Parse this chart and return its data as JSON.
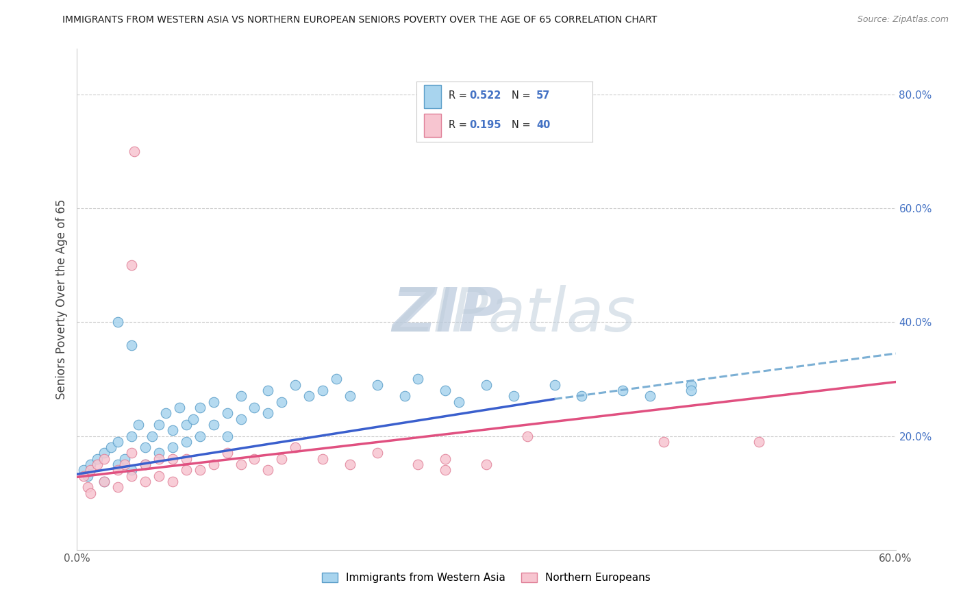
{
  "title": "IMMIGRANTS FROM WESTERN ASIA VS NORTHERN EUROPEAN SENIORS POVERTY OVER THE AGE OF 65 CORRELATION CHART",
  "source": "Source: ZipAtlas.com",
  "ylabel": "Seniors Poverty Over the Age of 65",
  "x_label_blue": "Immigrants from Western Asia",
  "x_label_pink": "Northern Europeans",
  "blue_R": "0.522",
  "blue_N": "57",
  "pink_R": "0.195",
  "pink_N": "40",
  "xlim": [
    0.0,
    0.6
  ],
  "ylim": [
    0.0,
    0.88
  ],
  "right_yticks": [
    0.2,
    0.4,
    0.6,
    0.8
  ],
  "right_yticklabels": [
    "20.0%",
    "40.0%",
    "60.0%",
    "80.0%"
  ],
  "blue_fill": "#A8D4EE",
  "blue_edge": "#5B9EC9",
  "pink_fill": "#F7C5D0",
  "pink_edge": "#E08098",
  "trend_blue_color": "#3A5FCD",
  "trend_pink_color": "#E05080",
  "trend_dashed_color": "#7BAFD4",
  "grid_color": "#CCCCCC",
  "title_color": "#1a1a1a",
  "source_color": "#888888",
  "axis_label_color": "#444444",
  "right_tick_color": "#4472C4",
  "legend_text_color": "#222222",
  "legend_value_color": "#4472C4",
  "watermark_color": "#C8D8EC",
  "blue_x": [
    0.005,
    0.008,
    0.01,
    0.015,
    0.02,
    0.02,
    0.025,
    0.03,
    0.03,
    0.035,
    0.04,
    0.04,
    0.045,
    0.05,
    0.05,
    0.055,
    0.06,
    0.06,
    0.065,
    0.07,
    0.07,
    0.075,
    0.08,
    0.08,
    0.085,
    0.09,
    0.09,
    0.1,
    0.1,
    0.11,
    0.11,
    0.12,
    0.12,
    0.13,
    0.14,
    0.14,
    0.15,
    0.16,
    0.17,
    0.18,
    0.19,
    0.2,
    0.22,
    0.24,
    0.25,
    0.27,
    0.28,
    0.3,
    0.32,
    0.35,
    0.37,
    0.4,
    0.42,
    0.45,
    0.45,
    0.03,
    0.04
  ],
  "blue_y": [
    0.14,
    0.13,
    0.15,
    0.16,
    0.17,
    0.12,
    0.18,
    0.15,
    0.19,
    0.16,
    0.2,
    0.14,
    0.22,
    0.18,
    0.15,
    0.2,
    0.22,
    0.17,
    0.24,
    0.21,
    0.18,
    0.25,
    0.22,
    0.19,
    0.23,
    0.25,
    0.2,
    0.26,
    0.22,
    0.24,
    0.2,
    0.27,
    0.23,
    0.25,
    0.28,
    0.24,
    0.26,
    0.29,
    0.27,
    0.28,
    0.3,
    0.27,
    0.29,
    0.27,
    0.3,
    0.28,
    0.26,
    0.29,
    0.27,
    0.29,
    0.27,
    0.28,
    0.27,
    0.29,
    0.28,
    0.4,
    0.36
  ],
  "pink_x": [
    0.005,
    0.008,
    0.01,
    0.01,
    0.015,
    0.02,
    0.02,
    0.03,
    0.03,
    0.035,
    0.04,
    0.04,
    0.042,
    0.05,
    0.05,
    0.06,
    0.06,
    0.07,
    0.07,
    0.08,
    0.08,
    0.09,
    0.1,
    0.11,
    0.12,
    0.13,
    0.14,
    0.15,
    0.16,
    0.18,
    0.2,
    0.22,
    0.25,
    0.27,
    0.3,
    0.33,
    0.43,
    0.04,
    0.27,
    0.5
  ],
  "pink_y": [
    0.13,
    0.11,
    0.14,
    0.1,
    0.15,
    0.12,
    0.16,
    0.14,
    0.11,
    0.15,
    0.13,
    0.17,
    0.7,
    0.15,
    0.12,
    0.16,
    0.13,
    0.16,
    0.12,
    0.14,
    0.16,
    0.14,
    0.15,
    0.17,
    0.15,
    0.16,
    0.14,
    0.16,
    0.18,
    0.16,
    0.15,
    0.17,
    0.15,
    0.16,
    0.15,
    0.2,
    0.19,
    0.5,
    0.14,
    0.19
  ],
  "blue_trend_x0": 0.0,
  "blue_trend_y0": 0.133,
  "blue_trend_x1": 0.35,
  "blue_trend_y1": 0.265,
  "pink_trend_x0": 0.0,
  "pink_trend_y0": 0.128,
  "pink_trend_x1": 0.6,
  "pink_trend_y1": 0.295,
  "dashed_trend_x0": 0.35,
  "dashed_trend_y0": 0.265,
  "dashed_trend_x1": 0.6,
  "dashed_trend_y1": 0.345
}
